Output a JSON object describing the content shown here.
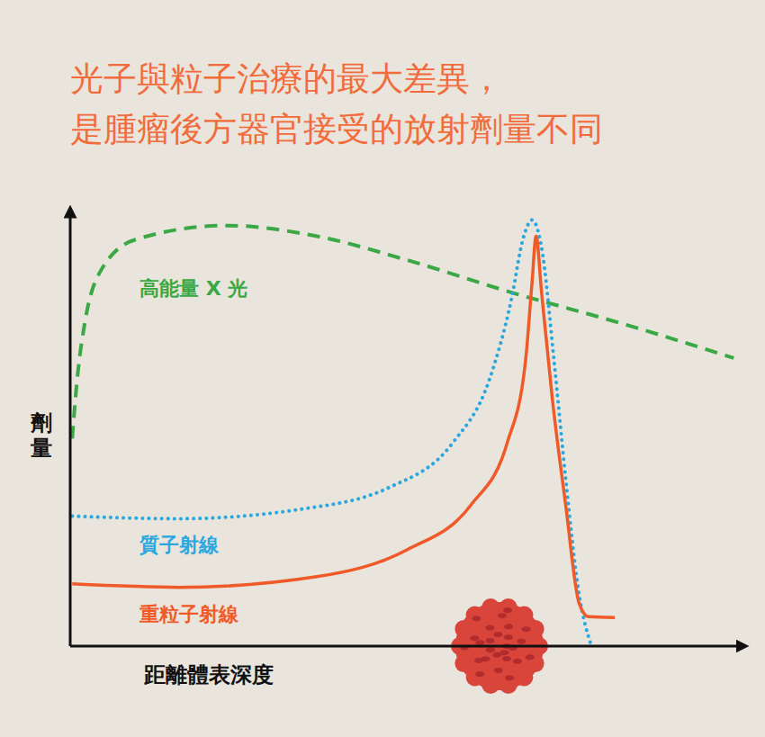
{
  "chart_data": {
    "type": "line",
    "title": [
      "光子與粒子治療的最大差異，",
      "是腫瘤後方器官接受的放射劑量不同"
    ],
    "x_label": "距離體表深度",
    "y_label": "劑量",
    "xlim": [
      0,
      100
    ],
    "ylim": [
      0,
      102
    ],
    "xticks": [],
    "yticks": [],
    "tick_labels": false,
    "grid": false,
    "series": [
      {
        "name": "高能量 X 光",
        "color": "#3aa845",
        "line_style": "dashed",
        "x": [
          0.3,
          1,
          2.3,
          4.3,
          9.7,
          23.2,
          36.7,
          50.1,
          65,
          83.8,
          98.7
        ],
        "values": [
          48.7,
          62,
          77,
          87.4,
          95.4,
          98.7,
          96.2,
          90.6,
          83.3,
          74.9,
          67.6
        ]
      },
      {
        "name": "質子射線",
        "color": "#29a8e0",
        "line_style": "dotted",
        "x": [
          0.3,
          16.2,
          33.7,
          47.4,
          56.9,
          62.3,
          65.6,
          67.4,
          68.7,
          70.1,
          72,
          73.7,
          75.7,
          77.4
        ],
        "values": [
          30.5,
          29.9,
          32,
          37.2,
          47.7,
          62.3,
          81.2,
          95.8,
          100,
          93.7,
          66.5,
          39.3,
          12.1,
          0.6
        ]
      },
      {
        "name": "重粒子射線",
        "color": "#f05a28",
        "line_style": "solid",
        "x": [
          0.3,
          16.2,
          36.7,
          50.1,
          59.6,
          65,
          67.7,
          68.7,
          69.3,
          70.1,
          71.7,
          73.7,
          75.7,
          77.1,
          81
        ],
        "values": [
          14.6,
          13.8,
          16.3,
          22.6,
          33.1,
          47.7,
          66.5,
          85.4,
          96.2,
          83.3,
          58.2,
          33.1,
          10,
          6.9,
          6.7
        ]
      }
    ]
  }
}
